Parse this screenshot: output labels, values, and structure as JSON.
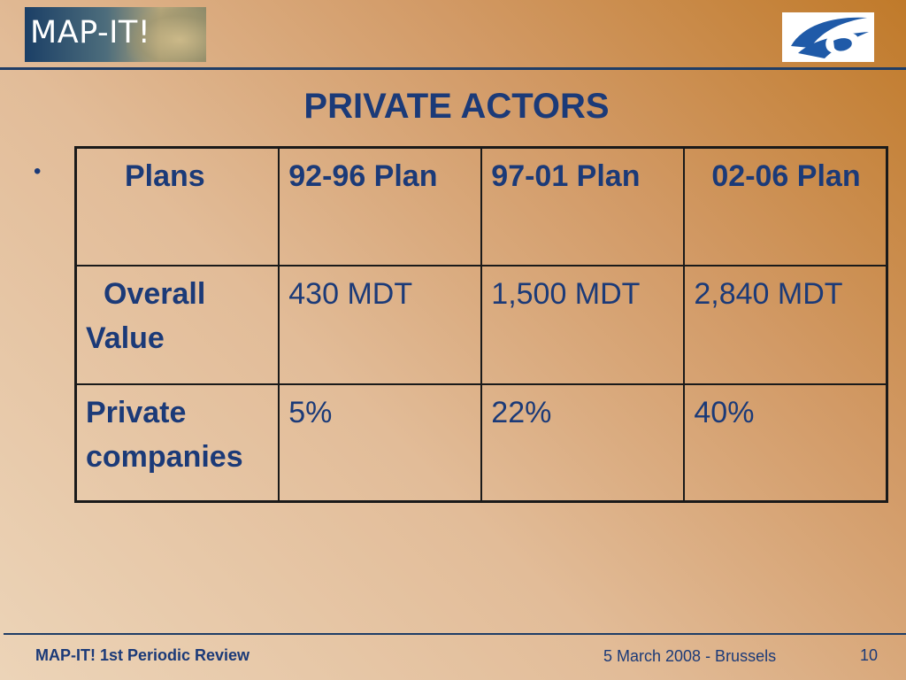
{
  "header": {
    "logo_left_text": "MAP-IT!",
    "logo_right_icon": "fp6-logo"
  },
  "title": "PRIVATE ACTORS",
  "bullet": "•",
  "table": {
    "header_row": [
      "Plans",
      "92-96 Plan",
      "97-01 Plan",
      "02-06 Plan"
    ],
    "rows": [
      [
        "Overall Value",
        "430 MDT",
        "1,500 MDT",
        "2,840 MDT"
      ],
      [
        "Private companies",
        "5%",
        "22%",
        "40%"
      ]
    ]
  },
  "footer": {
    "left": "MAP-IT! 1st Periodic Review",
    "center": "5 March 2008 - Brussels",
    "page": "10"
  },
  "colors": {
    "text": "#1b3a78",
    "rule": "#1f3d66",
    "background_dark": "#c07a2a",
    "background_light": "#ecd4b8"
  }
}
